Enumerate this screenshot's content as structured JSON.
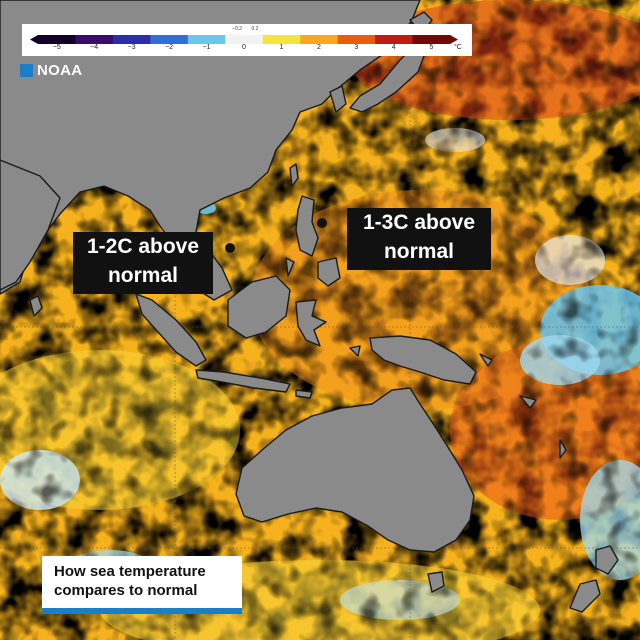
{
  "legend": {
    "tick_labels": [
      "−5",
      "−4",
      "−3",
      "−2",
      "−1",
      "0",
      "1",
      "2",
      "3",
      "4",
      "5"
    ],
    "small_labels": [
      "−0.2",
      "0.2"
    ],
    "unit": "°C",
    "colors": [
      "#12002a",
      "#3a0b6e",
      "#2b2fa6",
      "#2f6fd6",
      "#6cc6ec",
      "#f2f2f2",
      "#f5e43c",
      "#f7a81e",
      "#ee5a14",
      "#c21a12",
      "#6e0a08"
    ]
  },
  "source": {
    "label": "NOAA"
  },
  "callouts": [
    {
      "lines": [
        "1-2C above",
        "normal"
      ]
    },
    {
      "lines": [
        "1-3C above",
        "normal"
      ]
    }
  ],
  "caption": {
    "lines": [
      "How sea temperature",
      "compares to normal"
    ]
  },
  "colors": {
    "land": "#8a8a8a",
    "sea_warm": "#f6b21d",
    "sea_hot": "#ec7617",
    "accent": "#1a7fc8"
  }
}
